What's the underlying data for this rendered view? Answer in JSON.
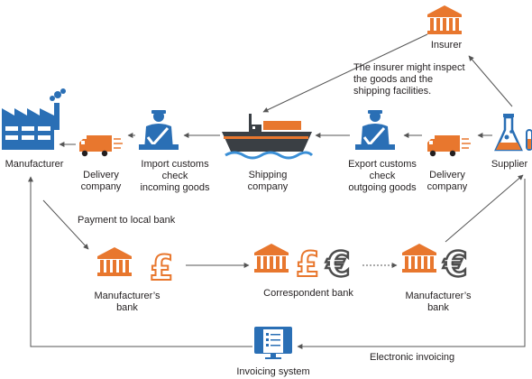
{
  "colors": {
    "bank_orange": "#e8772e",
    "customs_blue": "#2a6fb5",
    "factory_blue": "#2a6fb5",
    "ship_dark": "#3a3f44",
    "ship_accent": "#e8772e",
    "water_blue": "#3b8fd6",
    "arrow": "#555555",
    "euro_gray": "#4d4d4d"
  },
  "labels": {
    "insurer": "Insurer",
    "insurer_note": [
      "The insurer might inspect",
      "the goods and the",
      "shipping facilities."
    ],
    "manufacturer": "Manufacturer",
    "delivery_left": [
      "Delivery",
      "company"
    ],
    "import_customs": [
      "Import customs",
      "check",
      "incoming goods"
    ],
    "shipping": [
      "Shipping",
      "company"
    ],
    "export_customs": [
      "Export customs",
      "check",
      "outgoing goods"
    ],
    "delivery_right": [
      "Delivery",
      "company"
    ],
    "supplier": "Supplier",
    "payment": "Payment to local bank",
    "manu_bank_left": [
      "Manufacturer’s",
      "bank"
    ],
    "correspondent": "Correspondent bank",
    "manu_bank_right": [
      "Manufacturer’s",
      "bank"
    ],
    "electronic_invoicing": "Electronic invoicing",
    "invoicing_system": "Invoicing system"
  },
  "currency": {
    "pound": "£",
    "euro": "€"
  },
  "icons": [
    "bank-icon",
    "factory-icon",
    "truck-icon",
    "customs-officer-icon",
    "cargo-ship-icon",
    "flask-icon",
    "pound-icon",
    "euro-icon",
    "invoice-monitor-icon"
  ]
}
